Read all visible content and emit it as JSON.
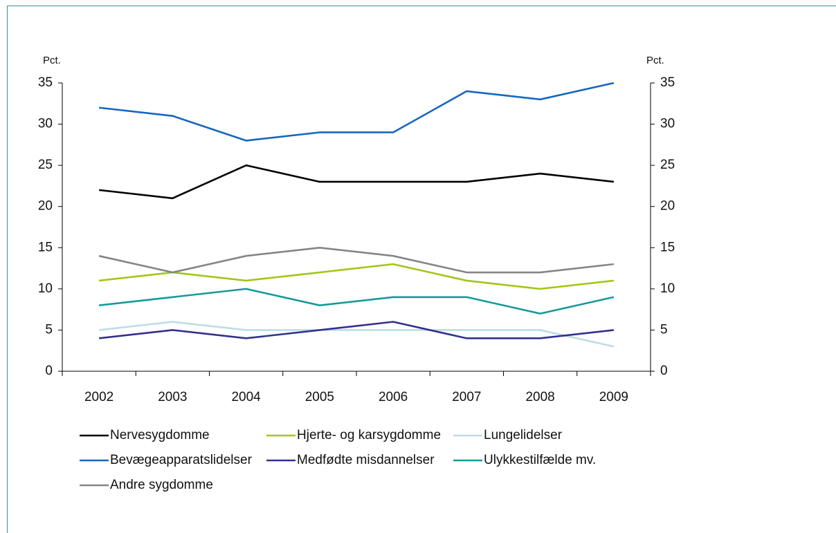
{
  "chart_data": {
    "type": "line",
    "y_label": "Pct.",
    "y2_label": "Pct.",
    "categories": [
      "2002",
      "2003",
      "2004",
      "2005",
      "2006",
      "2007",
      "2008",
      "2009"
    ],
    "series": [
      {
        "name": "Nervesygdomme",
        "color": "#000000",
        "values": [
          22,
          21,
          25,
          23,
          23,
          23,
          24,
          23
        ]
      },
      {
        "name": "Hjerte- og karsygdomme",
        "color": "#a2c617",
        "values": [
          11,
          12,
          11,
          12,
          13,
          11,
          10,
          11
        ]
      },
      {
        "name": "Lungelidelser",
        "color": "#bcdde5",
        "values": [
          5,
          6,
          5,
          5,
          5,
          5,
          5,
          3
        ]
      },
      {
        "name": "Bevægeapparatslidelser",
        "color": "#1566c0",
        "values": [
          32,
          31,
          28,
          29,
          29,
          34,
          33,
          35
        ]
      },
      {
        "name": "Medfødte misdannelser",
        "color": "#33308e",
        "values": [
          4,
          5,
          4,
          5,
          6,
          4,
          4,
          5
        ]
      },
      {
        "name": "Ulykkestilfælde mv.",
        "color": "#149a9a",
        "values": [
          8,
          9,
          10,
          8,
          9,
          9,
          7,
          9
        ]
      },
      {
        "name": "Andre sygdomme",
        "color": "#858585",
        "values": [
          14,
          12,
          14,
          15,
          14,
          12,
          12,
          13
        ]
      }
    ],
    "ylim": [
      0,
      35
    ],
    "yticks": [
      0,
      5,
      10,
      15,
      20,
      25,
      30,
      35
    ],
    "y2lim": [
      0,
      35
    ],
    "y2ticks": [
      0,
      5,
      10,
      15,
      20,
      25,
      30,
      35
    ]
  }
}
